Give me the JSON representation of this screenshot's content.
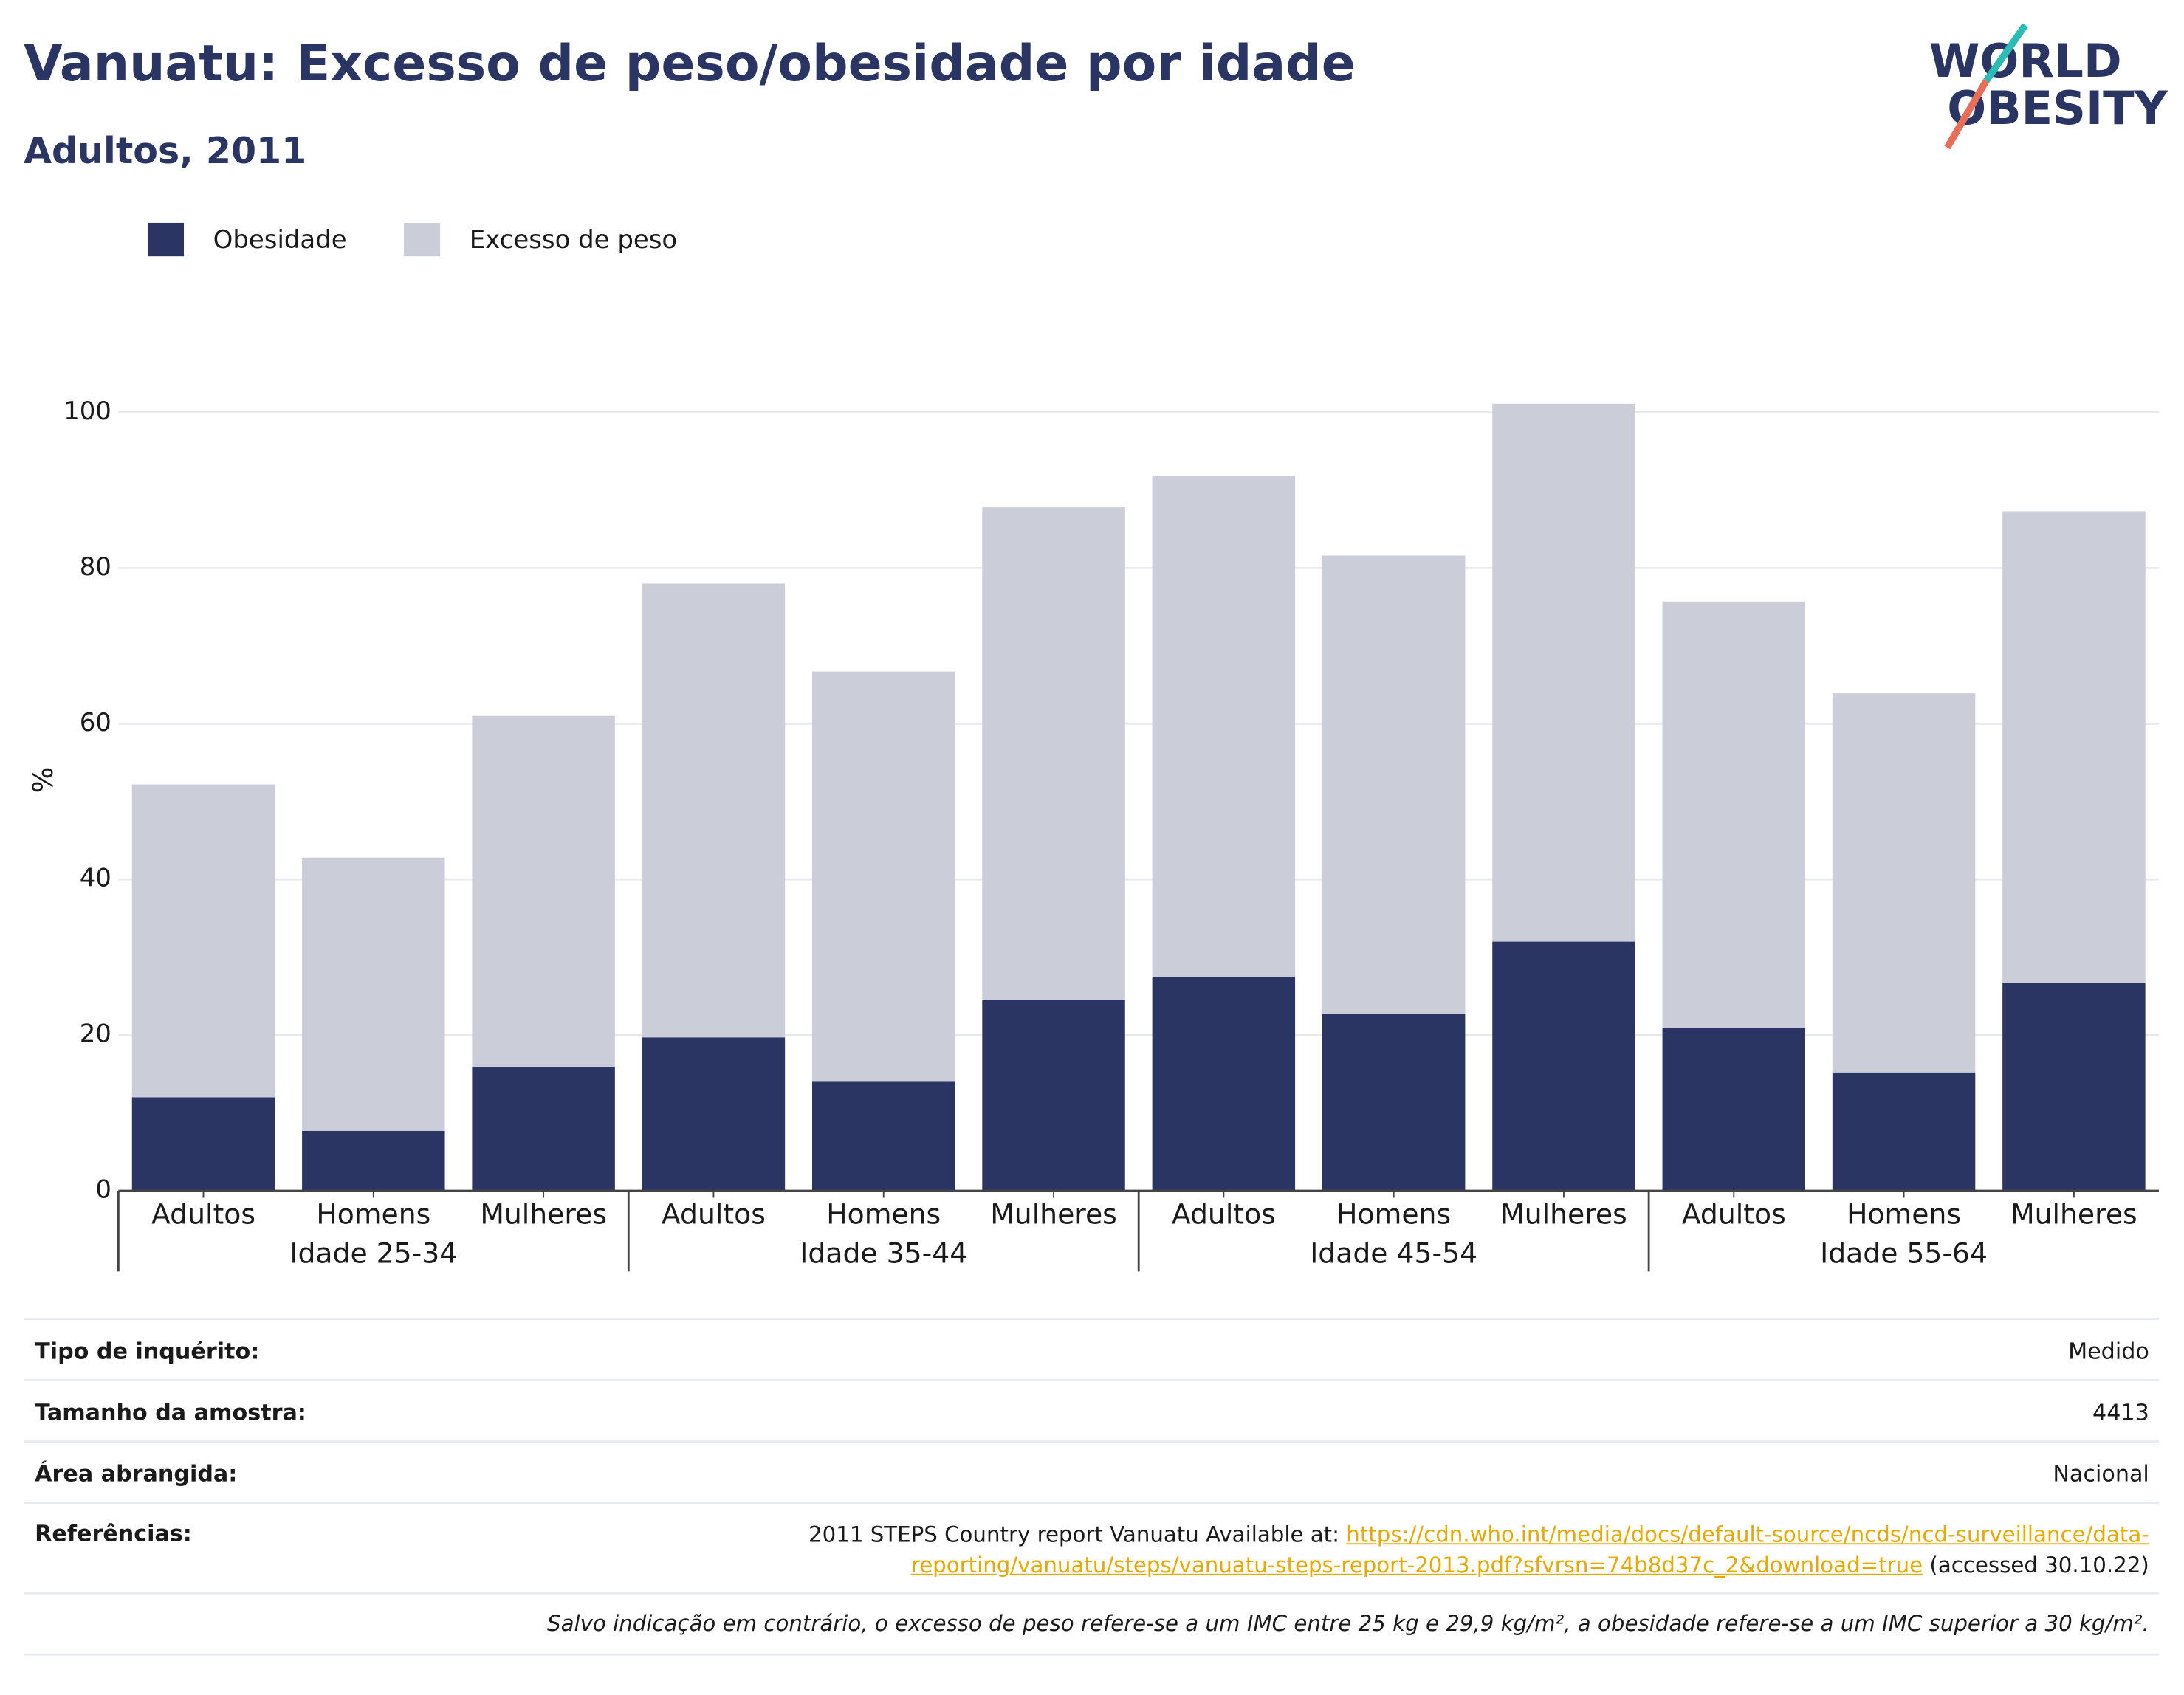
{
  "chart_data": {
    "type": "stacked_bar",
    "title": "Vanuatu: Excesso de peso/obesidade por idade",
    "subtitle": "Adultos, 2011",
    "logo": [
      "WORLD",
      "OBESITY"
    ],
    "ylabel": "%",
    "groups": [
      {
        "name": "Idade 25-34",
        "categories": [
          "Adultos",
          "Homens",
          "Mulheres"
        ]
      },
      {
        "name": "Idade 35-44",
        "categories": [
          "Adultos",
          "Homens",
          "Mulheres"
        ]
      },
      {
        "name": "Idade 45-54",
        "categories": [
          "Adultos",
          "Homens",
          "Mulheres"
        ]
      },
      {
        "name": "Idade 55-64",
        "categories": [
          "Adultos",
          "Homens",
          "Mulheres"
        ]
      }
    ],
    "series": [
      {
        "name": "Obesidade",
        "color": "#2a3563",
        "values": [
          12.0,
          7.7,
          15.9,
          19.7,
          14.1,
          24.5,
          27.5,
          22.7,
          32.0,
          20.9,
          15.2,
          26.7
        ]
      },
      {
        "name": "Excesso de peso",
        "color": "#cbcdd8",
        "values": [
          40.2,
          35.1,
          45.1,
          58.3,
          52.6,
          63.3,
          64.3,
          58.9,
          69.1,
          54.8,
          48.7,
          60.6
        ]
      }
    ],
    "ylim": [
      0,
      102
    ],
    "yticks": [
      0,
      20,
      40,
      60,
      80,
      100
    ],
    "grid": true,
    "legend": "top-left"
  },
  "table": {
    "rows": [
      [
        "Tipo de inquérito:",
        "Medido"
      ],
      [
        "Tamanho da amostra:",
        4413
      ],
      [
        "Área abrangida:",
        "Nacional"
      ]
    ],
    "references_label": "Referências:",
    "references": {
      "text": "2011 STEPS Country report Vanuatu Available at:",
      "url": "https://cdn.who.int/media/docs/default-source/ncds/ncd-surveillance/data-reporting/vanuatu/steps/vanuatu-steps-report-2013.pdf?sfvrsn=74b8d37c_2&download=true",
      "accessed": "(accessed 30.10.22)"
    },
    "note": "Salvo indicação em contrário, o excesso de peso refere-se a um IMC entre 25 kg e 29,9 kg/m², a obesidade refere-se a um IMC superior a 30 kg/m²."
  }
}
